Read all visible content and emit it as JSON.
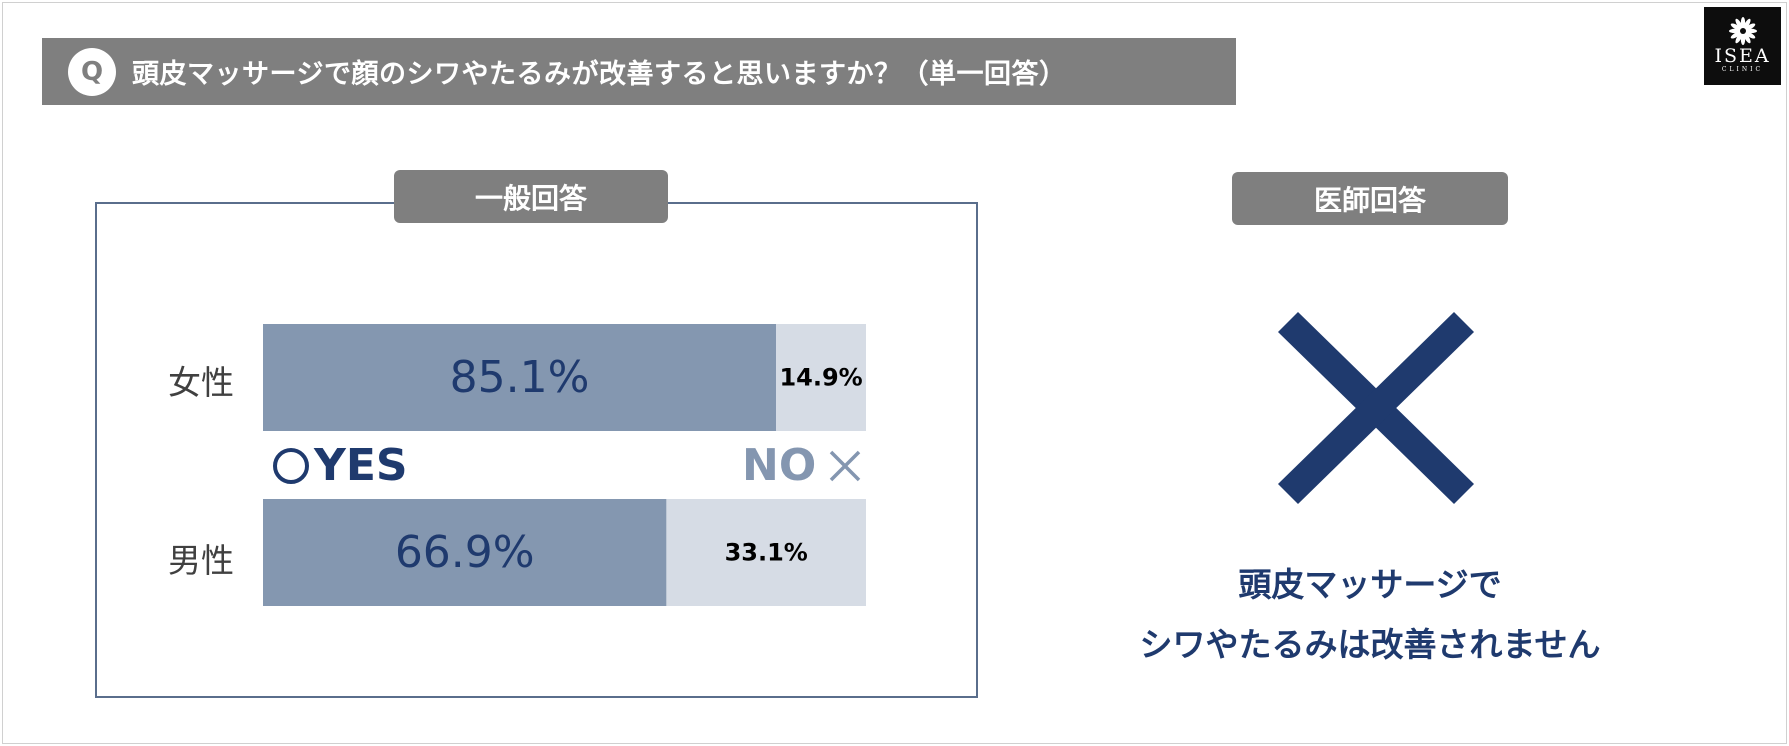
{
  "question": {
    "badge": "Q",
    "text": "頭皮マッサージで顔のシワやたるみが改善すると思いますか？（単一回答）"
  },
  "logo": {
    "name": "ISEA",
    "sub": "CLINIC"
  },
  "general": {
    "tag": "一般回答"
  },
  "doctor": {
    "tag": "医師回答",
    "answer_icon": "cross-mark-icon",
    "line1": "頭皮マッサージで",
    "line2": "シワやたるみは改善されません"
  },
  "legend": {
    "yes": "YES",
    "no": "NO",
    "yes_icon": "circle-icon",
    "no_icon": "cross-icon"
  },
  "colors": {
    "yes_bar": "#8497b0",
    "no_bar": "#d6dce5",
    "accent_navy": "#1f3a6e",
    "gray_tag": "#7f7f7f"
  },
  "chart_data": {
    "type": "bar",
    "orientation": "horizontal",
    "stacked": true,
    "percent": true,
    "categories": [
      "女性",
      "男性"
    ],
    "series": [
      {
        "name": "YES",
        "values": [
          85.1,
          66.9
        ],
        "labels": [
          "85.1%",
          "66.9%"
        ]
      },
      {
        "name": "NO",
        "values": [
          14.9,
          33.1
        ],
        "labels": [
          "14.9%",
          "33.1%"
        ]
      }
    ],
    "xlim": [
      0,
      100
    ]
  }
}
